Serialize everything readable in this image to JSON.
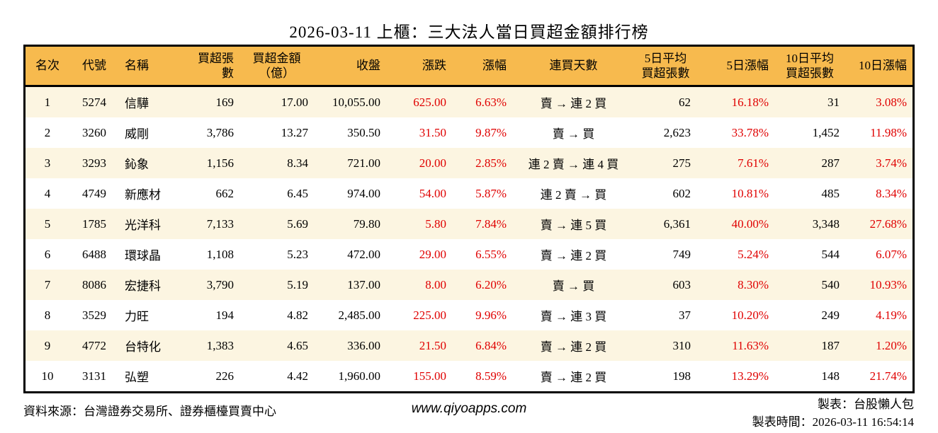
{
  "title": "2026-03-11 上櫃：三大法人當日買超金額排行榜",
  "colors": {
    "header_bg": "#f7ba4e",
    "row_alt_bg": "#fcf5e1",
    "up_red": "#e00000",
    "border": "#000000"
  },
  "table": {
    "headers": [
      "名次",
      "代號",
      "名稱",
      "買超張數",
      "買超金額\n（億）",
      "收盤",
      "漲跌",
      "漲幅",
      "連買天數",
      "5日平均\n買超張數",
      "5日漲幅",
      "10日平均\n買超張數",
      "10日漲幅"
    ],
    "rows": [
      [
        "1",
        "5274",
        "信驊",
        "169",
        "17.00",
        "10,055.00",
        "625.00",
        "6.63%",
        "賣 → 連 2 買",
        "62",
        "16.18%",
        "31",
        "3.08%"
      ],
      [
        "2",
        "3260",
        "威剛",
        "3,786",
        "13.27",
        "350.50",
        "31.50",
        "9.87%",
        "賣 → 買",
        "2,623",
        "33.78%",
        "1,452",
        "11.98%"
      ],
      [
        "3",
        "3293",
        "鈊象",
        "1,156",
        "8.34",
        "721.00",
        "20.00",
        "2.85%",
        "連 2 賣 → 連 4 買",
        "275",
        "7.61%",
        "287",
        "3.74%"
      ],
      [
        "4",
        "4749",
        "新應材",
        "662",
        "6.45",
        "974.00",
        "54.00",
        "5.87%",
        "連 2 賣 → 買",
        "602",
        "10.81%",
        "485",
        "8.34%"
      ],
      [
        "5",
        "1785",
        "光洋科",
        "7,133",
        "5.69",
        "79.80",
        "5.80",
        "7.84%",
        "賣 → 連 5 買",
        "6,361",
        "40.00%",
        "3,348",
        "27.68%"
      ],
      [
        "6",
        "6488",
        "環球晶",
        "1,108",
        "5.23",
        "472.00",
        "29.00",
        "6.55%",
        "賣 → 連 2 買",
        "749",
        "5.24%",
        "544",
        "6.07%"
      ],
      [
        "7",
        "8086",
        "宏捷科",
        "3,790",
        "5.19",
        "137.00",
        "8.00",
        "6.20%",
        "賣 → 買",
        "603",
        "8.30%",
        "540",
        "10.93%"
      ],
      [
        "8",
        "3529",
        "力旺",
        "194",
        "4.82",
        "2,485.00",
        "225.00",
        "9.96%",
        "賣 → 連 3 買",
        "37",
        "10.20%",
        "249",
        "4.19%"
      ],
      [
        "9",
        "4772",
        "台特化",
        "1,383",
        "4.65",
        "336.00",
        "21.50",
        "6.84%",
        "賣 → 連 2 買",
        "310",
        "11.63%",
        "187",
        "1.20%"
      ],
      [
        "10",
        "3131",
        "弘塑",
        "226",
        "4.42",
        "1,960.00",
        "155.00",
        "8.59%",
        "賣 → 連 2 買",
        "198",
        "13.29%",
        "148",
        "21.74%"
      ]
    ]
  },
  "footer": {
    "source": "資料來源：台灣證券交易所、證券櫃檯買賣中心",
    "website": "www.qiyoapps.com",
    "maker": "製表：台股懶人包",
    "made_time": "製表時間：2026-03-11 16:54:14"
  }
}
